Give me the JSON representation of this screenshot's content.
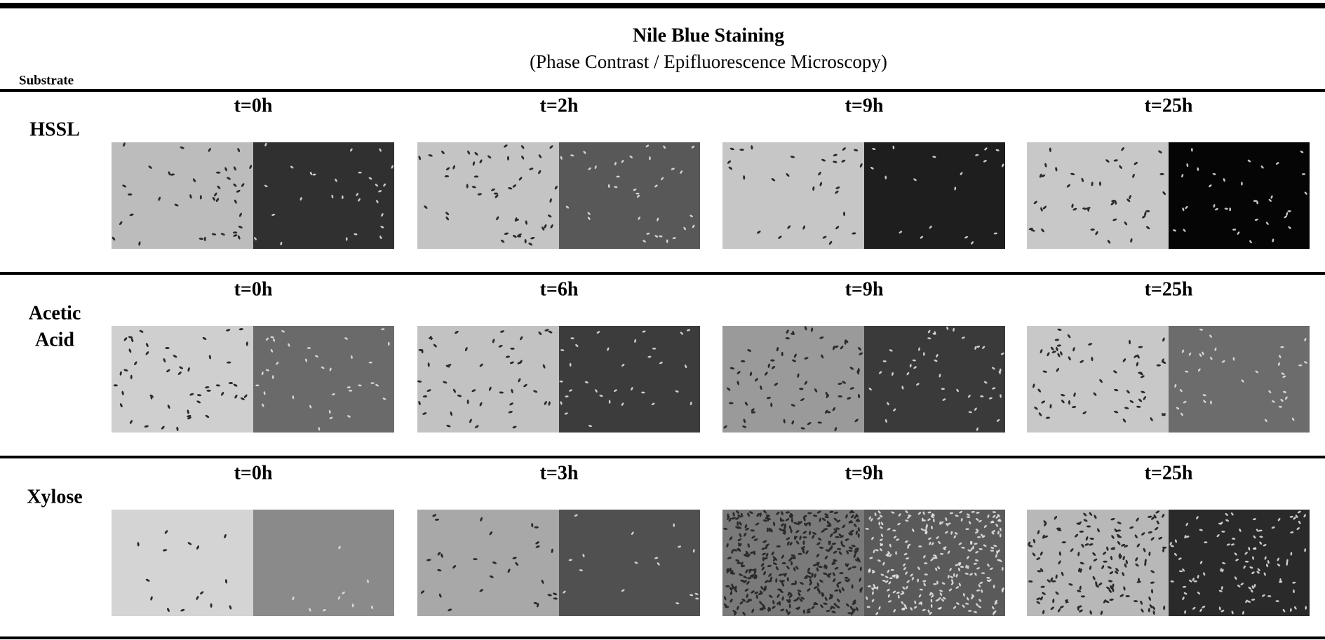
{
  "header": {
    "title": "Nile Blue Staining",
    "subtitle": "(Phase Contrast / Epifluorescence Microscopy)",
    "row_header": "Substrate"
  },
  "rows": [
    {
      "substrate": [
        "HSSL"
      ],
      "times": [
        "t=0h",
        "t=2h",
        "t=9h",
        "t=25h"
      ]
    },
    {
      "substrate": [
        "Acetic",
        "Acid"
      ],
      "times": [
        "t=0h",
        "t=6h",
        "t=9h",
        "t=25h"
      ]
    },
    {
      "substrate": [
        "Xylose"
      ],
      "times": [
        "t=0h",
        "t=3h",
        "t=9h",
        "t=25h"
      ]
    }
  ]
}
